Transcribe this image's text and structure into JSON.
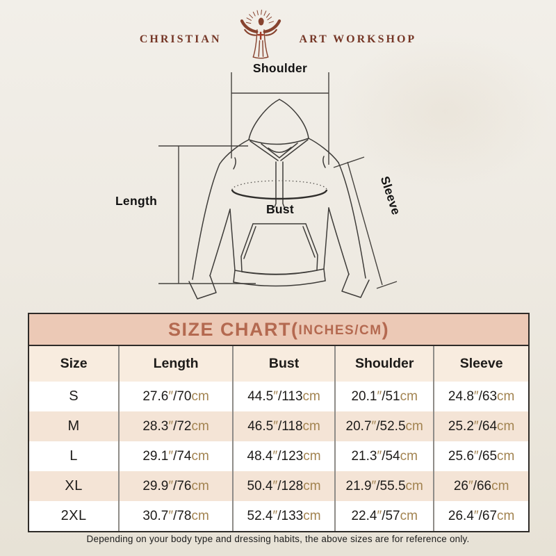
{
  "logo": {
    "left": "CHRISTIAN",
    "right": "ART WORKSHOP"
  },
  "diagram": {
    "labels": {
      "shoulder": "Shoulder",
      "length": "Length",
      "bust": "Bust",
      "sleeve": "Sleeve"
    }
  },
  "size_chart": {
    "title_main": "SIZE CHART(",
    "title_units": "INCHES/CM",
    "title_close": ")",
    "columns": [
      "Size",
      "Length",
      "Bust",
      "Shoulder",
      "Sleeve"
    ],
    "unit_inch": "″",
    "separator": "/",
    "unit_cm": "cm",
    "rows": [
      {
        "size": "S",
        "measurements": [
          {
            "in": "27.6",
            "cm": "70"
          },
          {
            "in": "44.5",
            "cm": "113"
          },
          {
            "in": "20.1",
            "cm": "51"
          },
          {
            "in": "24.8",
            "cm": "63"
          }
        ]
      },
      {
        "size": "M",
        "measurements": [
          {
            "in": "28.3",
            "cm": "72"
          },
          {
            "in": "46.5",
            "cm": "118"
          },
          {
            "in": "20.7",
            "cm": "52.5"
          },
          {
            "in": "25.2",
            "cm": "64"
          }
        ]
      },
      {
        "size": "L",
        "measurements": [
          {
            "in": "29.1",
            "cm": "74"
          },
          {
            "in": "48.4",
            "cm": "123"
          },
          {
            "in": "21.3",
            "cm": "54"
          },
          {
            "in": "25.6",
            "cm": "65"
          }
        ]
      },
      {
        "size": "XL",
        "measurements": [
          {
            "in": "29.9",
            "cm": "76"
          },
          {
            "in": "50.4",
            "cm": "128"
          },
          {
            "in": "21.9",
            "cm": "55.5"
          },
          {
            "in": "26",
            "cm": "66"
          }
        ]
      },
      {
        "size": "2XL",
        "measurements": [
          {
            "in": "30.7",
            "cm": "78"
          },
          {
            "in": "52.4",
            "cm": "133"
          },
          {
            "in": "22.4",
            "cm": "57"
          },
          {
            "in": "26.4",
            "cm": "67"
          }
        ]
      }
    ]
  },
  "footer": {
    "note": "Depending on your body type and dressing habits, the above sizes are for reference only."
  },
  "colors": {
    "banner_bg": "#ecc9b6",
    "banner_text": "#b46950",
    "header_row_bg": "#f8ecdf",
    "stripe_row_bg": "#f4e4d6",
    "accent_tan": "#a28350",
    "logo_maroon": "#753626",
    "table_border": "#2e2b28",
    "divider_gray": "#8f8c88",
    "text_black": "#1d1b19",
    "page_bg": "#efece4"
  }
}
